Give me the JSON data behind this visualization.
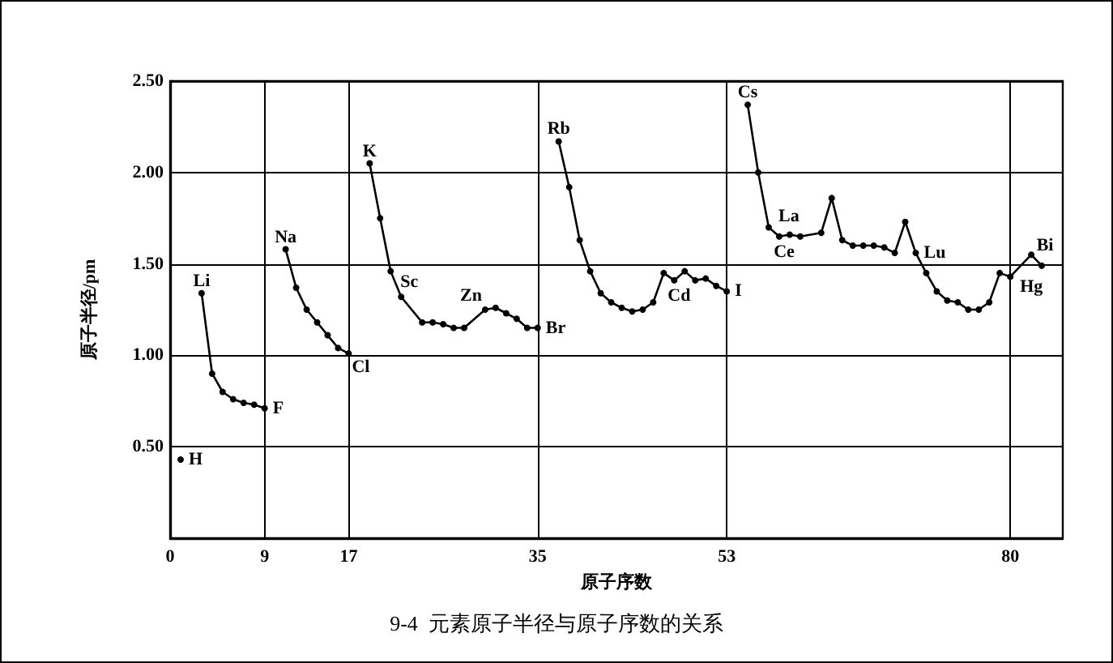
{
  "chart_data": {
    "type": "line",
    "title": "9-4  元素原子半径与原子序数的关系",
    "xlabel": "原子序数",
    "ylabel": "原子半径/pm",
    "x": [
      1,
      2,
      3,
      4,
      5,
      6,
      7,
      8,
      9,
      10,
      11,
      12,
      13,
      14,
      15,
      16,
      17,
      18,
      19,
      20,
      21,
      22,
      24,
      25,
      26,
      27,
      28,
      30,
      31,
      32,
      33,
      34,
      35,
      36,
      37,
      38,
      39,
      40,
      41,
      42,
      43,
      44,
      45,
      46,
      47,
      48,
      49,
      50,
      51,
      52,
      53,
      54,
      55,
      56,
      57,
      58,
      59,
      60,
      62,
      63,
      64,
      65,
      66,
      67,
      68,
      69,
      70,
      71,
      72,
      73,
      74,
      75,
      76,
      77,
      78,
      79,
      80,
      82,
      83
    ],
    "values": [
      0.43,
      null,
      1.34,
      0.9,
      0.8,
      0.76,
      0.74,
      0.73,
      0.71,
      null,
      1.58,
      1.37,
      1.25,
      1.18,
      1.11,
      1.04,
      1.01,
      null,
      2.05,
      1.75,
      1.46,
      1.32,
      1.18,
      1.18,
      1.17,
      1.15,
      1.15,
      1.25,
      1.26,
      1.23,
      1.2,
      1.15,
      1.15,
      null,
      2.17,
      1.92,
      1.63,
      1.46,
      1.34,
      1.29,
      1.26,
      1.24,
      1.25,
      1.29,
      1.45,
      1.41,
      1.46,
      1.41,
      1.42,
      1.38,
      1.35,
      null,
      2.37,
      2.0,
      1.7,
      1.65,
      1.66,
      1.65,
      1.67,
      1.86,
      1.63,
      1.6,
      1.6,
      1.6,
      1.59,
      1.56,
      1.73,
      1.56,
      1.45,
      1.35,
      1.3,
      1.29,
      1.25,
      1.25,
      1.29,
      1.45,
      1.43,
      1.55,
      1.49
    ],
    "color": "#000000",
    "marker": "circle",
    "line_style": "solid",
    "grid": true,
    "xlim": [
      0,
      85
    ],
    "xticks": [
      0,
      9,
      17,
      35,
      53,
      80
    ],
    "ylim": [
      0,
      2.5
    ],
    "yticks": [
      {
        "value": 0.5,
        "label": "0.50"
      },
      {
        "value": 1.0,
        "label": "1.00"
      },
      {
        "value": 1.5,
        "label": "1.50"
      },
      {
        "value": 2.0,
        "label": "2.00"
      },
      {
        "value": 2.5,
        "label": "2.50"
      }
    ],
    "annotations": [
      {
        "text": "H",
        "x": 1,
        "y": 0.43
      },
      {
        "text": "Li",
        "x": 3,
        "y": 1.34
      },
      {
        "text": "F",
        "x": 9,
        "y": 0.71
      },
      {
        "text": "Na",
        "x": 11,
        "y": 1.58
      },
      {
        "text": "Cl",
        "x": 17,
        "y": 1.01
      },
      {
        "text": "K",
        "x": 19,
        "y": 2.05
      },
      {
        "text": "Sc",
        "x": 21,
        "y": 1.46
      },
      {
        "text": "Zn",
        "x": 30,
        "y": 1.25
      },
      {
        "text": "Br",
        "x": 35,
        "y": 1.15
      },
      {
        "text": "Rb",
        "x": 37,
        "y": 2.17
      },
      {
        "text": "Cd",
        "x": 48,
        "y": 1.41
      },
      {
        "text": "I",
        "x": 53,
        "y": 1.35
      },
      {
        "text": "Cs",
        "x": 55,
        "y": 2.37
      },
      {
        "text": "La",
        "x": 57,
        "y": 1.7
      },
      {
        "text": "Ce",
        "x": 58,
        "y": 1.65
      },
      {
        "text": "Lu",
        "x": 71,
        "y": 1.56
      },
      {
        "text": "Hg",
        "x": 80,
        "y": 1.43
      },
      {
        "text": "Bi",
        "x": 83,
        "y": 1.49
      }
    ]
  }
}
